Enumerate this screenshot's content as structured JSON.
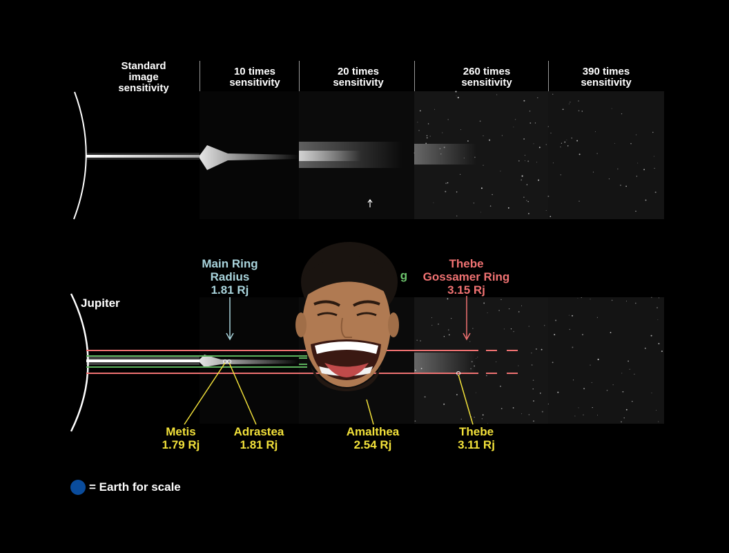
{
  "headers": [
    {
      "line1": "Standard",
      "line2": "image",
      "line3": "sensitivity"
    },
    {
      "line1": "10 times",
      "line2": "sensitivity"
    },
    {
      "line1": "20 times",
      "line2": "sensitivity"
    },
    {
      "line1": "260 times",
      "line2": "sensitivity"
    },
    {
      "line1": "390 times",
      "line2": "sensitivity"
    }
  ],
  "planet_label": "Jupiter",
  "top_labels": {
    "main_ring": {
      "line1": "Main Ring",
      "line2": "Radius",
      "line3": "1.81 Rj",
      "color": "#a9d4dc"
    },
    "partial_green": {
      "text": "g",
      "color": "#6cc36c"
    },
    "thebe_ring": {
      "line1": "Thebe",
      "line2": "Gossamer Ring",
      "line3": "3.15 Rj",
      "color": "#f07272"
    }
  },
  "moons": [
    {
      "name": "Metis",
      "radius": "1.79 Rj"
    },
    {
      "name": "Adrastea",
      "radius": "1.81 Rj"
    },
    {
      "name": "Amalthea",
      "radius": "2.54 Rj"
    },
    {
      "name": "Thebe",
      "radius": "3.11 Rj"
    }
  ],
  "moon_color": "#f2e13a",
  "legend": {
    "text": "= Earth for scale",
    "color": "#0a4c9c"
  },
  "overlay_image": "cartoon-laughing-face"
}
